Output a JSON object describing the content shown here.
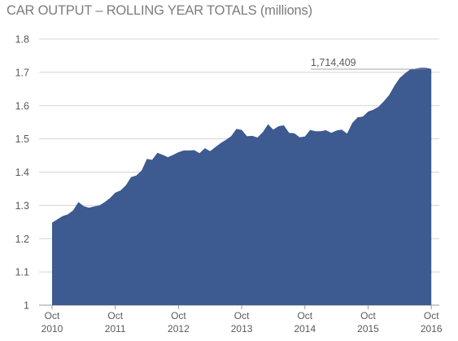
{
  "chart_data": {
    "type": "area",
    "title": "CAR OUTPUT – ROLLING YEAR TOTALS (millions)",
    "xlabel": "",
    "ylabel": "",
    "ylim": [
      1,
      1.8
    ],
    "y_ticks": [
      "1",
      "1.1",
      "1.2",
      "1.3",
      "1.4",
      "1.5",
      "1.6",
      "1.7",
      "1.8"
    ],
    "x_ticks": [
      {
        "month": "Oct",
        "year": "2010"
      },
      {
        "month": "Oct",
        "year": "2011"
      },
      {
        "month": "Oct",
        "year": "2012"
      },
      {
        "month": "Oct",
        "year": "2013"
      },
      {
        "month": "Oct",
        "year": "2014"
      },
      {
        "month": "Oct",
        "year": "2015"
      },
      {
        "month": "Oct",
        "year": "2016"
      }
    ],
    "grid": "horizontal",
    "color": "#3d5a91",
    "series": [
      {
        "x": [
          "2010-10",
          "2010-11",
          "2010-12",
          "2011-01",
          "2011-02",
          "2011-03",
          "2011-04",
          "2011-05",
          "2011-06",
          "2011-07",
          "2011-08",
          "2011-09",
          "2011-10",
          "2011-11",
          "2011-12",
          "2012-01",
          "2012-02",
          "2012-03",
          "2012-04",
          "2012-05",
          "2012-06",
          "2012-07",
          "2012-08",
          "2012-09",
          "2012-10",
          "2012-11",
          "2012-12",
          "2013-01",
          "2013-02",
          "2013-03",
          "2013-04",
          "2013-05",
          "2013-06",
          "2013-07",
          "2013-08",
          "2013-09",
          "2013-10",
          "2013-11",
          "2013-12",
          "2014-01",
          "2014-02",
          "2014-03",
          "2014-04",
          "2014-05",
          "2014-06",
          "2014-07",
          "2014-08",
          "2014-09",
          "2014-10",
          "2014-11",
          "2014-12",
          "2015-01",
          "2015-02",
          "2015-03",
          "2015-04",
          "2015-05",
          "2015-06",
          "2015-07",
          "2015-08",
          "2015-09",
          "2015-10",
          "2015-11",
          "2015-12",
          "2016-01",
          "2016-02",
          "2016-03",
          "2016-04",
          "2016-05",
          "2016-06",
          "2016-07",
          "2016-08",
          "2016-09",
          "2016-10"
        ],
        "values": [
          1.248,
          1.258,
          1.268,
          1.273,
          1.285,
          1.31,
          1.298,
          1.293,
          1.297,
          1.3,
          1.31,
          1.322,
          1.338,
          1.345,
          1.36,
          1.385,
          1.39,
          1.405,
          1.44,
          1.437,
          1.458,
          1.452,
          1.445,
          1.452,
          1.46,
          1.465,
          1.465,
          1.466,
          1.457,
          1.472,
          1.463,
          1.475,
          1.487,
          1.497,
          1.508,
          1.53,
          1.527,
          1.508,
          1.509,
          1.504,
          1.52,
          1.544,
          1.528,
          1.538,
          1.541,
          1.518,
          1.517,
          1.505,
          1.507,
          1.527,
          1.523,
          1.523,
          1.526,
          1.518,
          1.525,
          1.528,
          1.516,
          1.548,
          1.565,
          1.567,
          1.582,
          1.588,
          1.597,
          1.613,
          1.632,
          1.66,
          1.683,
          1.697,
          1.709,
          1.711,
          1.714,
          1.714,
          1.71
        ]
      }
    ],
    "annotations": [
      {
        "text": "1,714,409",
        "x": "2016-09",
        "y": 1.714
      }
    ]
  }
}
